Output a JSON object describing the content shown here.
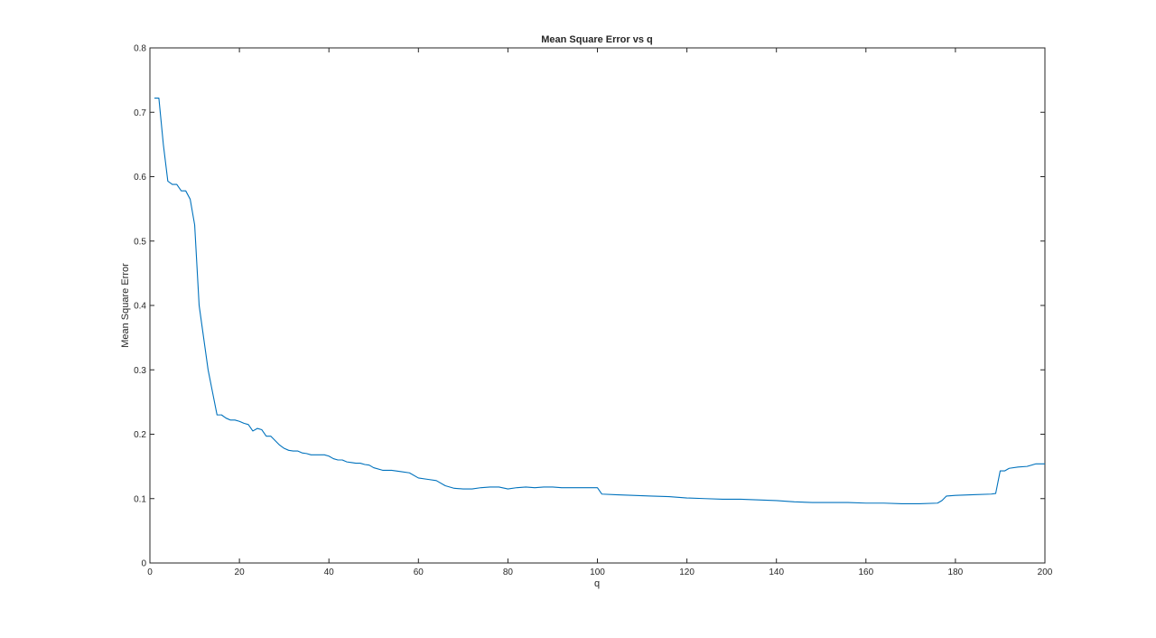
{
  "chart_data": {
    "type": "line",
    "title": "Mean Square Error vs q",
    "xlabel": "q",
    "ylabel": "Mean Square Error",
    "xlim": [
      0,
      200
    ],
    "ylim": [
      0,
      0.8
    ],
    "xticks": [
      "0",
      "20",
      "40",
      "60",
      "80",
      "100",
      "120",
      "140",
      "160",
      "180",
      "200"
    ],
    "yticks": [
      "0",
      "0.1",
      "0.2",
      "0.3",
      "0.4",
      "0.5",
      "0.6",
      "0.7",
      "0.8"
    ],
    "grid": false,
    "box": true,
    "series": [
      {
        "color": "#0072BD",
        "x": [
          1,
          2,
          3,
          4,
          5,
          6,
          7,
          8,
          9,
          10,
          11,
          12,
          13,
          14,
          15,
          16,
          17,
          18,
          19,
          20,
          21,
          22,
          23,
          24,
          25,
          26,
          27,
          28,
          29,
          30,
          31,
          32,
          33,
          34,
          35,
          36,
          37,
          38,
          39,
          40,
          41,
          42,
          43,
          44,
          45,
          46,
          47,
          48,
          49,
          50,
          52,
          54,
          56,
          58,
          60,
          62,
          64,
          66,
          68,
          70,
          72,
          74,
          76,
          78,
          80,
          82,
          84,
          86,
          88,
          90,
          92,
          94,
          96,
          98,
          100,
          101,
          104,
          108,
          112,
          116,
          120,
          124,
          128,
          132,
          136,
          140,
          144,
          148,
          152,
          156,
          160,
          164,
          168,
          172,
          176,
          177,
          178,
          180,
          184,
          188,
          189,
          190,
          191,
          192,
          194,
          196,
          198,
          200
        ],
        "y": [
          0.722,
          0.722,
          0.65,
          0.593,
          0.588,
          0.588,
          0.578,
          0.578,
          0.565,
          0.525,
          0.4,
          0.35,
          0.3,
          0.265,
          0.23,
          0.23,
          0.225,
          0.222,
          0.222,
          0.22,
          0.217,
          0.215,
          0.205,
          0.209,
          0.207,
          0.197,
          0.197,
          0.19,
          0.183,
          0.178,
          0.175,
          0.174,
          0.174,
          0.171,
          0.17,
          0.168,
          0.168,
          0.168,
          0.168,
          0.166,
          0.162,
          0.16,
          0.16,
          0.157,
          0.156,
          0.155,
          0.155,
          0.153,
          0.152,
          0.148,
          0.144,
          0.144,
          0.142,
          0.14,
          0.132,
          0.13,
          0.128,
          0.12,
          0.116,
          0.115,
          0.115,
          0.117,
          0.118,
          0.118,
          0.115,
          0.117,
          0.118,
          0.117,
          0.118,
          0.118,
          0.117,
          0.117,
          0.117,
          0.117,
          0.117,
          0.107,
          0.106,
          0.105,
          0.104,
          0.103,
          0.101,
          0.1,
          0.099,
          0.099,
          0.098,
          0.097,
          0.095,
          0.094,
          0.094,
          0.094,
          0.093,
          0.093,
          0.092,
          0.092,
          0.093,
          0.097,
          0.104,
          0.105,
          0.106,
          0.107,
          0.108,
          0.143,
          0.143,
          0.147,
          0.149,
          0.15,
          0.154,
          0.154
        ]
      }
    ]
  }
}
